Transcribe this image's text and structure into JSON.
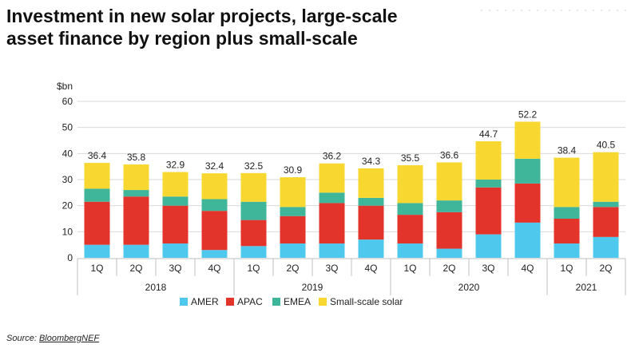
{
  "title_lines": [
    "Investment in new solar projects, large-scale",
    "asset finance by region plus small-scale"
  ],
  "source": {
    "prefix": "Source: ",
    "name": "BloombergNEF"
  },
  "colors": {
    "AMER": "#4fc8ee",
    "APAC": "#e3342b",
    "EMEA": "#3fb59a",
    "Small-scale solar": "#f8d830",
    "grid": "#d9d9d9",
    "text": "#222222"
  },
  "chart_data": {
    "type": "bar",
    "stacked": true,
    "title": "Investment in new solar projects, large-scale asset finance by region plus small-scale",
    "ylabel": "$bn",
    "ylim": [
      0,
      60
    ],
    "yticks": [
      0,
      10,
      20,
      30,
      40,
      50,
      60
    ],
    "grid": true,
    "legend_position": "bottom",
    "categories": [
      "1Q",
      "2Q",
      "3Q",
      "4Q",
      "1Q",
      "2Q",
      "3Q",
      "4Q",
      "1Q",
      "2Q",
      "3Q",
      "4Q",
      "1Q",
      "2Q"
    ],
    "year_groups": [
      {
        "label": "2018",
        "count": 4
      },
      {
        "label": "2019",
        "count": 4
      },
      {
        "label": "2020",
        "count": 4
      },
      {
        "label": "2021",
        "count": 2
      }
    ],
    "series": [
      {
        "name": "AMER",
        "values": [
          5.0,
          5.0,
          5.5,
          3.0,
          4.5,
          5.5,
          5.5,
          7.0,
          5.5,
          3.5,
          9.0,
          13.5,
          5.5,
          8.0
        ]
      },
      {
        "name": "APAC",
        "values": [
          16.5,
          18.5,
          14.5,
          15.0,
          10.0,
          10.5,
          15.5,
          13.0,
          11.0,
          14.0,
          18.0,
          15.0,
          9.5,
          11.5
        ]
      },
      {
        "name": "EMEA",
        "values": [
          5.0,
          2.5,
          3.5,
          4.5,
          7.0,
          3.5,
          4.0,
          3.0,
          4.5,
          4.5,
          3.0,
          9.5,
          4.5,
          2.0
        ]
      },
      {
        "name": "Small-scale solar",
        "values": [
          9.9,
          9.8,
          9.4,
          9.9,
          11.0,
          11.4,
          11.2,
          11.3,
          14.5,
          14.6,
          14.7,
          14.2,
          18.9,
          19.0
        ]
      }
    ],
    "totals": [
      "36.4",
      "35.8",
      "32.9",
      "32.4",
      "32.5",
      "30.9",
      "36.2",
      "34.3",
      "35.5",
      "36.6",
      "44.7",
      "52.2",
      "38.4",
      "40.5"
    ]
  }
}
